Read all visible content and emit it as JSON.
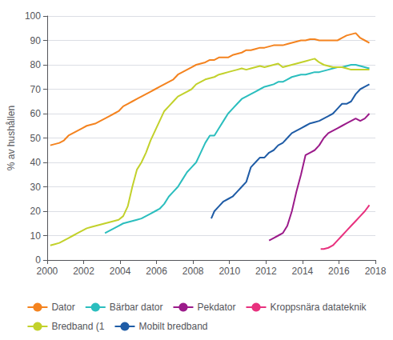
{
  "chart_data": {
    "type": "line",
    "ylabel": "% av hushållen",
    "xlim": [
      2000,
      2018
    ],
    "xticks": [
      2000,
      2002,
      2004,
      2006,
      2008,
      2010,
      2012,
      2014,
      2016,
      2018
    ],
    "ylim": [
      0,
      100
    ],
    "yticks": [
      0,
      10,
      20,
      30,
      40,
      50,
      60,
      70,
      80,
      90,
      100
    ],
    "grid": true,
    "legend": "bottom",
    "series": [
      {
        "name": "Dator",
        "color": "#F4831F",
        "x": [
          2000.17,
          2000.42,
          2000.67,
          2000.92,
          2001.17,
          2001.42,
          2001.67,
          2001.92,
          2002.17,
          2002.42,
          2002.67,
          2002.92,
          2003.17,
          2003.42,
          2003.67,
          2003.92,
          2004.17,
          2004.42,
          2004.67,
          2004.92,
          2005.17,
          2005.42,
          2005.67,
          2005.92,
          2006.17,
          2006.42,
          2006.67,
          2006.92,
          2007.17,
          2007.42,
          2007.67,
          2007.92,
          2008.17,
          2008.42,
          2008.67,
          2008.92,
          2009.17,
          2009.42,
          2009.67,
          2009.92,
          2010.17,
          2010.42,
          2010.67,
          2010.92,
          2011.17,
          2011.42,
          2011.67,
          2011.92,
          2012.17,
          2012.42,
          2012.67,
          2012.92,
          2013.17,
          2013.42,
          2013.67,
          2013.92,
          2014.17,
          2014.42,
          2014.67,
          2014.92,
          2015.17,
          2015.42,
          2015.67,
          2015.92,
          2016.17,
          2016.42,
          2016.67,
          2016.92,
          2017.17,
          2017.42,
          2017.67
        ],
        "values": [
          47,
          47.5,
          48,
          49,
          51,
          52,
          53,
          54,
          55,
          55.5,
          56,
          57,
          58,
          59,
          60,
          61,
          63,
          64,
          65,
          66,
          67,
          68,
          69,
          70,
          71,
          72,
          73,
          74,
          76,
          77,
          78,
          79,
          80,
          80.5,
          81,
          82,
          82,
          83,
          83,
          83,
          84,
          84.5,
          85,
          86,
          86,
          86.5,
          87,
          87,
          87.5,
          88,
          88,
          88,
          88.5,
          89,
          89.5,
          90,
          90,
          90.5,
          90.5,
          90,
          90,
          90,
          90,
          90,
          91,
          92,
          92.5,
          93,
          91,
          90,
          89
        ]
      },
      {
        "name": "Bärbar dator",
        "color": "#2BBEBE",
        "x": [
          2003.17,
          2003.42,
          2003.67,
          2003.92,
          2004.17,
          2004.42,
          2004.67,
          2004.92,
          2005.17,
          2005.42,
          2005.67,
          2005.92,
          2006.17,
          2006.42,
          2006.67,
          2006.92,
          2007.17,
          2007.42,
          2007.67,
          2007.92,
          2008.17,
          2008.42,
          2008.67,
          2008.92,
          2009.17,
          2009.42,
          2009.67,
          2009.92,
          2010.17,
          2010.42,
          2010.67,
          2010.92,
          2011.17,
          2011.42,
          2011.67,
          2011.92,
          2012.17,
          2012.42,
          2012.67,
          2012.92,
          2013.17,
          2013.42,
          2013.67,
          2013.92,
          2014.17,
          2014.42,
          2014.67,
          2014.92,
          2015.17,
          2015.42,
          2015.67,
          2015.92,
          2016.17,
          2016.42,
          2016.67,
          2016.92,
          2017.17,
          2017.42,
          2017.67
        ],
        "values": [
          11,
          12,
          13,
          14,
          15,
          15.5,
          16,
          16.5,
          17,
          18,
          19,
          20,
          21,
          23,
          26,
          28,
          30,
          33,
          36,
          38,
          40,
          44,
          48,
          51,
          51,
          54,
          57,
          60,
          62,
          64,
          66,
          67,
          68,
          69,
          70,
          71,
          71.5,
          72,
          73,
          73,
          74,
          75,
          75.5,
          76,
          76,
          76.5,
          77,
          77,
          77.5,
          78,
          78.5,
          79,
          79,
          79.5,
          80,
          80,
          79.5,
          79,
          78.5
        ]
      },
      {
        "name": "Pekdator",
        "color": "#9B1B8A",
        "x": [
          2012.17,
          2012.42,
          2012.67,
          2012.92,
          2013.17,
          2013.42,
          2013.67,
          2013.92,
          2014.17,
          2014.42,
          2014.67,
          2014.92,
          2015.17,
          2015.42,
          2015.67,
          2015.92,
          2016.17,
          2016.42,
          2016.67,
          2016.92,
          2017.17,
          2017.42,
          2017.67
        ],
        "values": [
          8,
          9,
          10,
          11,
          14,
          20,
          28,
          35,
          43,
          44,
          45,
          47,
          50,
          52,
          53,
          54,
          55,
          56,
          57,
          58,
          57,
          58,
          60
        ]
      },
      {
        "name": "Kroppsnära datateknik",
        "color": "#E8317E",
        "x": [
          2015.0,
          2015.17,
          2015.42,
          2015.67,
          2015.92,
          2016.17,
          2016.42,
          2016.67,
          2016.92,
          2017.17,
          2017.42,
          2017.67
        ],
        "values": [
          4.5,
          4.5,
          5,
          6,
          8,
          10,
          12,
          14,
          16,
          18,
          20,
          22.5
        ]
      },
      {
        "name": "Bredband (1",
        "color": "#C2D12B",
        "x": [
          2000.17,
          2000.42,
          2000.67,
          2000.92,
          2001.17,
          2001.42,
          2001.67,
          2001.92,
          2002.17,
          2002.42,
          2002.67,
          2002.92,
          2003.17,
          2003.42,
          2003.67,
          2003.92,
          2004.17,
          2004.42,
          2004.67,
          2004.92,
          2005.17,
          2005.42,
          2005.67,
          2005.92,
          2006.17,
          2006.42,
          2006.67,
          2006.92,
          2007.17,
          2007.42,
          2007.67,
          2007.92,
          2008.17,
          2008.42,
          2008.67,
          2008.92,
          2009.17,
          2009.42,
          2009.67,
          2009.92,
          2010.17,
          2010.42,
          2010.67,
          2010.92,
          2011.17,
          2011.42,
          2011.67,
          2011.92,
          2012.17,
          2012.42,
          2012.67,
          2012.92,
          2013.17,
          2013.42,
          2013.67,
          2013.92,
          2014.17,
          2014.42,
          2014.67,
          2014.92,
          2015.17,
          2015.42,
          2015.67,
          2015.92,
          2016.17,
          2016.42,
          2016.67,
          2016.92,
          2017.17,
          2017.42,
          2017.67
        ],
        "values": [
          6,
          6.5,
          7,
          8,
          9,
          10,
          11,
          12,
          13,
          13.5,
          14,
          14.5,
          15,
          15.5,
          16,
          16.5,
          18,
          22,
          30,
          37,
          40,
          44,
          49,
          53,
          57,
          61,
          63,
          65,
          67,
          68,
          69,
          70,
          72,
          73,
          74,
          74.5,
          75,
          76,
          76.5,
          77,
          77.5,
          78,
          78.5,
          78,
          78.5,
          79,
          79.5,
          79,
          79.5,
          80,
          80.5,
          79,
          79.5,
          80,
          80.5,
          81,
          81.5,
          82,
          82.5,
          81,
          80,
          79.5,
          79,
          79,
          79,
          78.5,
          78,
          78,
          78,
          78,
          78
        ]
      },
      {
        "name": "Mobilt bredband",
        "color": "#1F5CA6",
        "x": [
          2009.0,
          2009.17,
          2009.42,
          2009.67,
          2009.92,
          2010.17,
          2010.42,
          2010.67,
          2010.92,
          2011.17,
          2011.42,
          2011.67,
          2011.92,
          2012.17,
          2012.42,
          2012.67,
          2012.92,
          2013.17,
          2013.42,
          2013.67,
          2013.92,
          2014.17,
          2014.42,
          2014.67,
          2014.92,
          2015.17,
          2015.42,
          2015.67,
          2015.92,
          2016.17,
          2016.42,
          2016.67,
          2016.92,
          2017.17,
          2017.42,
          2017.67
        ],
        "values": [
          17,
          20,
          22,
          24,
          25,
          26,
          28,
          30,
          32,
          38,
          40,
          42,
          42,
          44,
          45,
          47,
          48,
          50,
          52,
          53,
          54,
          55,
          56,
          56.5,
          57,
          58,
          59,
          60,
          62,
          64,
          64,
          65,
          68,
          70,
          71,
          72
        ]
      }
    ]
  }
}
